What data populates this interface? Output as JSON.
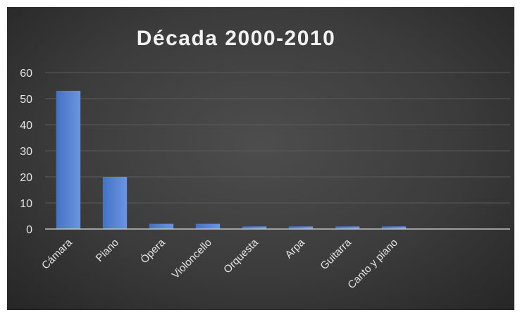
{
  "chart_data": {
    "type": "bar",
    "title": "Década 2000-2010",
    "categories": [
      "Cámara",
      "Piano",
      "Ópera",
      "Violoncello",
      "Orquesta",
      "Arpa",
      "Guitarra",
      "Canto y piano"
    ],
    "values": [
      53,
      20,
      2,
      2,
      1,
      1,
      1,
      1
    ],
    "ylim": [
      0,
      60
    ],
    "yticks": [
      0,
      10,
      20,
      30,
      40,
      50,
      60
    ],
    "grid": true,
    "legend": "none",
    "colors": {
      "bar": "#4472c4",
      "bar_light": "#6a95e0",
      "background": "#404040",
      "text": "#e6e6e6",
      "grid": "#5a5a5a",
      "axis": "#bfbfbf"
    }
  }
}
